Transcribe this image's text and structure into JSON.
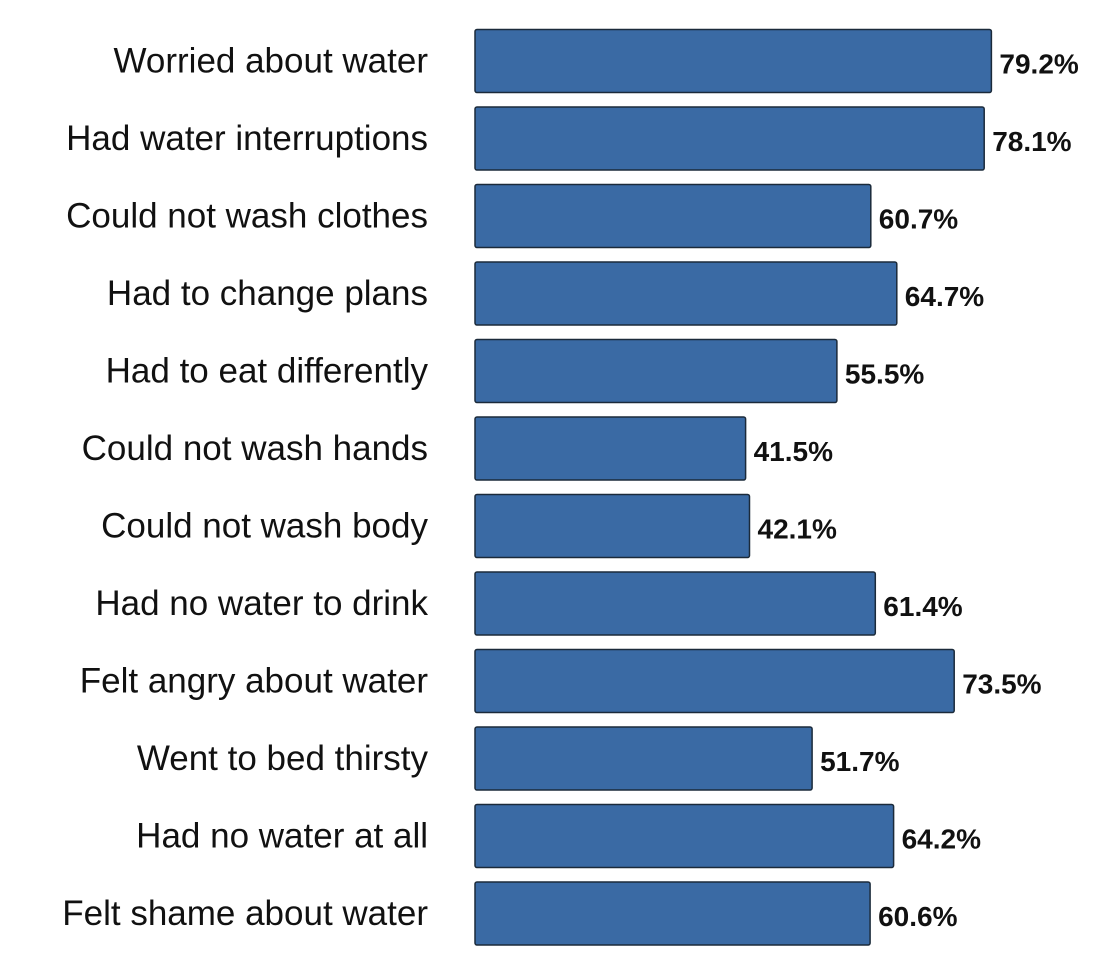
{
  "chart_data": {
    "type": "bar",
    "orientation": "horizontal",
    "categories": [
      "Worried about water",
      "Had water interruptions",
      "Could not wash clothes",
      "Had to change plans",
      "Had to eat differently",
      "Could not wash hands",
      "Could not wash body",
      "Had no water to drink",
      "Felt angry about water",
      "Went to bed thirsty",
      "Had no water at all",
      "Felt shame about water"
    ],
    "values": [
      79.2,
      78.1,
      60.7,
      64.7,
      55.5,
      41.5,
      42.1,
      61.4,
      73.5,
      51.7,
      64.2,
      60.6
    ],
    "value_labels": [
      "79.2%",
      "78.1%",
      "60.7%",
      "64.7%",
      "55.5%",
      "41.5%",
      "42.1%",
      "61.4%",
      "73.5%",
      "51.7%",
      "64.2%",
      "60.6%"
    ],
    "unit": "%",
    "xlim": [
      0,
      100
    ],
    "grid": false,
    "bar_color": "#3a6aa4"
  }
}
